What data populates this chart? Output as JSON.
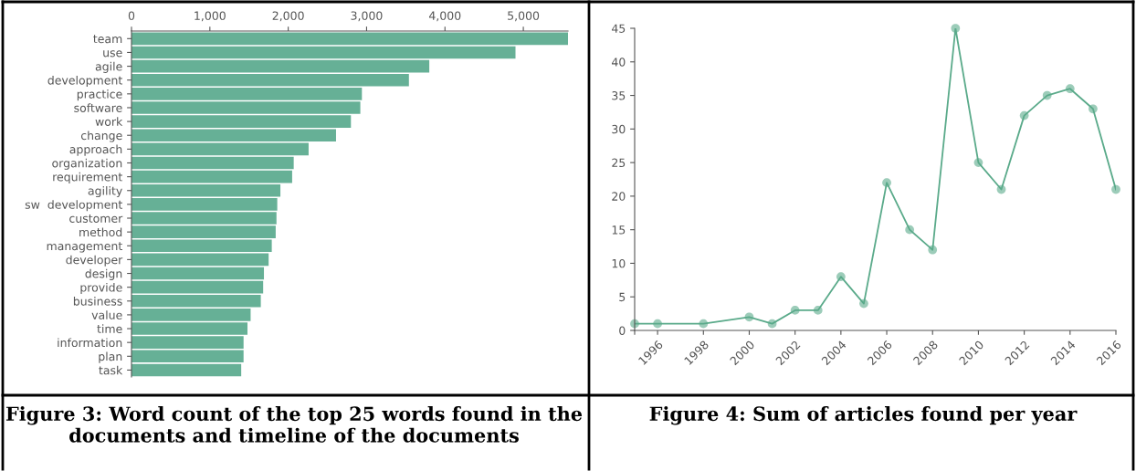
{
  "chart_data": [
    {
      "type": "bar",
      "orientation": "horizontal",
      "title": "Figure 3: Word count of the top 25 words found in the documents and timeline of the documents",
      "categories": [
        "team",
        "use",
        "agile",
        "development",
        "practice",
        "software",
        "work",
        "change",
        "approach",
        "organization",
        "requirement",
        "agility",
        "sw  development",
        "customer",
        "method",
        "management",
        "developer",
        "design",
        "provide",
        "business",
        "value",
        "time",
        "information",
        "plan",
        "task"
      ],
      "values": [
        5570,
        4900,
        3800,
        3540,
        2940,
        2920,
        2800,
        2610,
        2260,
        2070,
        2050,
        1900,
        1860,
        1850,
        1840,
        1790,
        1750,
        1690,
        1680,
        1650,
        1520,
        1480,
        1430,
        1430,
        1400
      ],
      "color": "#66b096",
      "xlim": [
        0,
        5570
      ],
      "xticks": [
        {
          "value": 0,
          "label": "0"
        },
        {
          "value": 1000,
          "label": "1,000"
        },
        {
          "value": 2000,
          "label": "2,000"
        },
        {
          "value": 3000,
          "label": "3,000"
        },
        {
          "value": 4000,
          "label": "4,000"
        },
        {
          "value": 5000,
          "label": "5,000"
        }
      ],
      "grid": false,
      "legend": false
    },
    {
      "type": "line",
      "title": "Figure 4: Sum of articles found per year",
      "x": [
        1995,
        1996,
        1998,
        2000,
        2001,
        2002,
        2003,
        2004,
        2005,
        2006,
        2007,
        2008,
        2009,
        2010,
        2011,
        2012,
        2013,
        2014,
        2015,
        2016
      ],
      "values": [
        1,
        1,
        1,
        2,
        1,
        3,
        3,
        8,
        4,
        22,
        15,
        12,
        45,
        25,
        21,
        32,
        35,
        36,
        33,
        21
      ],
      "color": "#5aaa8a",
      "marker": "circle",
      "line_style": "solid",
      "xlim": [
        1995,
        2016
      ],
      "xticks": [
        {
          "value": 1995,
          "label": null
        },
        1996,
        1998,
        2000,
        2002,
        2004,
        2006,
        2008,
        2010,
        2012,
        2014,
        2016
      ],
      "ylim": [
        0,
        45
      ],
      "yticks": [
        0,
        5,
        10,
        15,
        20,
        25,
        30,
        35,
        40,
        45
      ],
      "grid": false,
      "legend": false
    }
  ]
}
